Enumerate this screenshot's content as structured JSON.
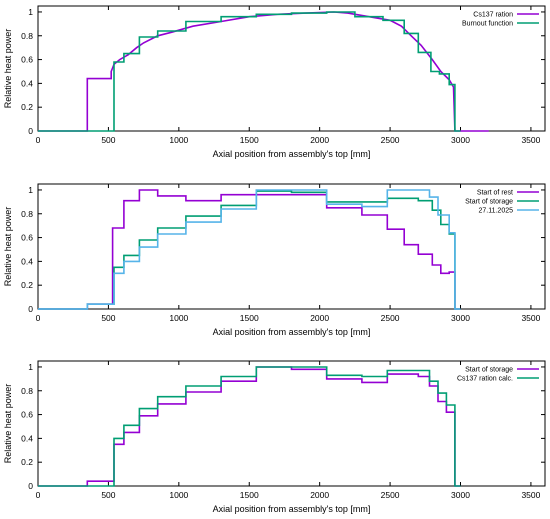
{
  "chart_data": [
    {
      "type": "line",
      "xlabel": "Axial position from assembly's top [mm]",
      "ylabel": "Relative heat power",
      "xlim": [
        0,
        3600
      ],
      "ylim": [
        0,
        1.05
      ],
      "xticks": [
        "0",
        "500",
        "1000",
        "1500",
        "2000",
        "2500",
        "3000",
        "3500"
      ],
      "yticks": [
        "0",
        "0.2",
        "0.4",
        "0.6",
        "0.8",
        "1"
      ],
      "legend_position": "top-right",
      "series": [
        {
          "name": "Cs137 ration",
          "color": "#9400d3",
          "style": "step",
          "points": [
            [
              0,
              0
            ],
            [
              350,
              0
            ],
            [
              350,
              0.44
            ],
            [
              520,
              0.44
            ],
            [
              520,
              0.5
            ],
            [
              540,
              0.56
            ],
            [
              580,
              0.6
            ],
            [
              640,
              0.64
            ],
            [
              700,
              0.7
            ],
            [
              750,
              0.74
            ],
            [
              850,
              0.8
            ],
            [
              950,
              0.83
            ],
            [
              1100,
              0.88
            ],
            [
              1300,
              0.92
            ],
            [
              1500,
              0.96
            ],
            [
              1700,
              0.98
            ],
            [
              1900,
              0.99
            ],
            [
              2100,
              1.0
            ],
            [
              2200,
              0.99
            ],
            [
              2350,
              0.96
            ],
            [
              2500,
              0.93
            ],
            [
              2580,
              0.88
            ],
            [
              2650,
              0.8
            ],
            [
              2720,
              0.72
            ],
            [
              2800,
              0.6
            ],
            [
              2860,
              0.5
            ],
            [
              2920,
              0.43
            ],
            [
              2950,
              0.37
            ],
            [
              2960,
              0
            ],
            [
              3200,
              0
            ]
          ]
        },
        {
          "name": "Burnout function",
          "color": "#009e73",
          "style": "step",
          "points": [
            [
              0,
              0
            ],
            [
              540,
              0
            ],
            [
              540,
              0.58
            ],
            [
              610,
              0.58
            ],
            [
              610,
              0.65
            ],
            [
              720,
              0.65
            ],
            [
              720,
              0.79
            ],
            [
              850,
              0.79
            ],
            [
              850,
              0.84
            ],
            [
              1050,
              0.84
            ],
            [
              1050,
              0.92
            ],
            [
              1300,
              0.92
            ],
            [
              1300,
              0.96
            ],
            [
              1550,
              0.96
            ],
            [
              1550,
              0.98
            ],
            [
              1800,
              0.98
            ],
            [
              1800,
              0.99
            ],
            [
              2050,
              0.99
            ],
            [
              2050,
              1.0
            ],
            [
              2250,
              1.0
            ],
            [
              2250,
              0.96
            ],
            [
              2450,
              0.96
            ],
            [
              2450,
              0.93
            ],
            [
              2600,
              0.93
            ],
            [
              2600,
              0.82
            ],
            [
              2700,
              0.82
            ],
            [
              2700,
              0.66
            ],
            [
              2790,
              0.66
            ],
            [
              2790,
              0.5
            ],
            [
              2850,
              0.5
            ],
            [
              2850,
              0.48
            ],
            [
              2920,
              0.48
            ],
            [
              2920,
              0.39
            ],
            [
              2960,
              0.39
            ],
            [
              2960,
              0
            ],
            [
              3000,
              0
            ]
          ]
        }
      ]
    },
    {
      "type": "line",
      "xlabel": "Axial position from assembly's top [mm]",
      "ylabel": "Relative heat power",
      "xlim": [
        0,
        3600
      ],
      "ylim": [
        0,
        1.05
      ],
      "xticks": [
        "0",
        "500",
        "1000",
        "1500",
        "2000",
        "2500",
        "3000",
        "3500"
      ],
      "yticks": [
        "0",
        "0.2",
        "0.4",
        "0.6",
        "0.8",
        "1"
      ],
      "legend_position": "top-right",
      "series": [
        {
          "name": "Start of rest",
          "color": "#9400d3",
          "style": "step",
          "points": [
            [
              0,
              0
            ],
            [
              350,
              0
            ],
            [
              350,
              0.04
            ],
            [
              530,
              0.04
            ],
            [
              530,
              0.68
            ],
            [
              610,
              0.68
            ],
            [
              610,
              0.91
            ],
            [
              720,
              0.91
            ],
            [
              720,
              1.0
            ],
            [
              850,
              1.0
            ],
            [
              850,
              0.95
            ],
            [
              1050,
              0.95
            ],
            [
              1050,
              0.91
            ],
            [
              1300,
              0.91
            ],
            [
              1300,
              0.96
            ],
            [
              1550,
              0.96
            ],
            [
              1550,
              0.96
            ],
            [
              2050,
              0.96
            ],
            [
              2050,
              0.85
            ],
            [
              2300,
              0.85
            ],
            [
              2300,
              0.79
            ],
            [
              2480,
              0.79
            ],
            [
              2480,
              0.67
            ],
            [
              2600,
              0.67
            ],
            [
              2600,
              0.54
            ],
            [
              2700,
              0.54
            ],
            [
              2700,
              0.46
            ],
            [
              2800,
              0.46
            ],
            [
              2800,
              0.37
            ],
            [
              2860,
              0.37
            ],
            [
              2860,
              0.3
            ],
            [
              2920,
              0.3
            ],
            [
              2920,
              0.31
            ],
            [
              2960,
              0.31
            ],
            [
              2960,
              0
            ],
            [
              3000,
              0
            ]
          ]
        },
        {
          "name": "Start of storage",
          "color": "#009e73",
          "style": "step",
          "points": [
            [
              0,
              0
            ],
            [
              350,
              0
            ],
            [
              350,
              0.04
            ],
            [
              540,
              0.04
            ],
            [
              540,
              0.35
            ],
            [
              610,
              0.35
            ],
            [
              610,
              0.45
            ],
            [
              720,
              0.45
            ],
            [
              720,
              0.58
            ],
            [
              850,
              0.58
            ],
            [
              850,
              0.68
            ],
            [
              1050,
              0.68
            ],
            [
              1050,
              0.78
            ],
            [
              1300,
              0.78
            ],
            [
              1300,
              0.87
            ],
            [
              1550,
              0.87
            ],
            [
              1550,
              0.99
            ],
            [
              1800,
              0.99
            ],
            [
              1800,
              0.98
            ],
            [
              2050,
              0.98
            ],
            [
              2050,
              0.9
            ],
            [
              2300,
              0.9
            ],
            [
              2300,
              0.9
            ],
            [
              2480,
              0.9
            ],
            [
              2480,
              0.93
            ],
            [
              2700,
              0.93
            ],
            [
              2700,
              0.91
            ],
            [
              2800,
              0.91
            ],
            [
              2800,
              0.83
            ],
            [
              2860,
              0.83
            ],
            [
              2860,
              0.71
            ],
            [
              2920,
              0.71
            ],
            [
              2920,
              0.63
            ],
            [
              2960,
              0.63
            ],
            [
              2960,
              0
            ],
            [
              3000,
              0
            ]
          ]
        },
        {
          "name": "27.11.2025",
          "color": "#56b4e9",
          "style": "step",
          "points": [
            [
              0,
              0
            ],
            [
              350,
              0
            ],
            [
              350,
              0.04
            ],
            [
              540,
              0.04
            ],
            [
              540,
              0.3
            ],
            [
              610,
              0.3
            ],
            [
              610,
              0.4
            ],
            [
              720,
              0.4
            ],
            [
              720,
              0.52
            ],
            [
              850,
              0.52
            ],
            [
              850,
              0.63
            ],
            [
              1050,
              0.63
            ],
            [
              1050,
              0.73
            ],
            [
              1300,
              0.73
            ],
            [
              1300,
              0.84
            ],
            [
              1550,
              0.84
            ],
            [
              1550,
              1.0
            ],
            [
              1800,
              1.0
            ],
            [
              1800,
              1.0
            ],
            [
              2050,
              1.0
            ],
            [
              2050,
              0.88
            ],
            [
              2300,
              0.88
            ],
            [
              2300,
              0.86
            ],
            [
              2480,
              0.86
            ],
            [
              2480,
              1.0
            ],
            [
              2780,
              1.0
            ],
            [
              2780,
              0.94
            ],
            [
              2840,
              0.94
            ],
            [
              2840,
              0.79
            ],
            [
              2920,
              0.79
            ],
            [
              2920,
              0.64
            ],
            [
              2960,
              0.64
            ],
            [
              2960,
              0
            ],
            [
              3000,
              0
            ]
          ]
        }
      ]
    },
    {
      "type": "line",
      "xlabel": "Axial position from assembly's top [mm]",
      "ylabel": "Relative heat power",
      "xlim": [
        0,
        3600
      ],
      "ylim": [
        0,
        1.05
      ],
      "xticks": [
        "0",
        "500",
        "1000",
        "1500",
        "2000",
        "2500",
        "3000",
        "3500"
      ],
      "yticks": [
        "0",
        "0.2",
        "0.4",
        "0.6",
        "0.8",
        "1"
      ],
      "legend_position": "top-right",
      "series": [
        {
          "name": "Start of storage",
          "color": "#9400d3",
          "style": "step",
          "points": [
            [
              0,
              0
            ],
            [
              350,
              0
            ],
            [
              350,
              0.04
            ],
            [
              540,
              0.04
            ],
            [
              540,
              0.35
            ],
            [
              610,
              0.35
            ],
            [
              610,
              0.45
            ],
            [
              720,
              0.45
            ],
            [
              720,
              0.59
            ],
            [
              850,
              0.59
            ],
            [
              850,
              0.69
            ],
            [
              1050,
              0.69
            ],
            [
              1050,
              0.79
            ],
            [
              1300,
              0.79
            ],
            [
              1300,
              0.88
            ],
            [
              1550,
              0.88
            ],
            [
              1550,
              1.0
            ],
            [
              1800,
              1.0
            ],
            [
              1800,
              0.98
            ],
            [
              2050,
              0.98
            ],
            [
              2050,
              0.9
            ],
            [
              2300,
              0.9
            ],
            [
              2300,
              0.87
            ],
            [
              2480,
              0.87
            ],
            [
              2480,
              0.94
            ],
            [
              2700,
              0.94
            ],
            [
              2700,
              0.92
            ],
            [
              2780,
              0.92
            ],
            [
              2780,
              0.84
            ],
            [
              2840,
              0.84
            ],
            [
              2840,
              0.71
            ],
            [
              2900,
              0.71
            ],
            [
              2900,
              0.62
            ],
            [
              2960,
              0.62
            ],
            [
              2960,
              0
            ],
            [
              3000,
              0
            ]
          ]
        },
        {
          "name": "Cs137 ration calc.",
          "color": "#009e73",
          "style": "step",
          "points": [
            [
              0,
              0
            ],
            [
              540,
              0
            ],
            [
              540,
              0.4
            ],
            [
              610,
              0.4
            ],
            [
              610,
              0.51
            ],
            [
              720,
              0.51
            ],
            [
              720,
              0.65
            ],
            [
              850,
              0.65
            ],
            [
              850,
              0.75
            ],
            [
              1050,
              0.75
            ],
            [
              1050,
              0.84
            ],
            [
              1300,
              0.84
            ],
            [
              1300,
              0.92
            ],
            [
              1550,
              0.92
            ],
            [
              1550,
              1.0
            ],
            [
              1800,
              1.0
            ],
            [
              1800,
              1.0
            ],
            [
              2050,
              1.0
            ],
            [
              2050,
              0.93
            ],
            [
              2300,
              0.93
            ],
            [
              2300,
              0.92
            ],
            [
              2480,
              0.92
            ],
            [
              2480,
              0.97
            ],
            [
              2700,
              0.97
            ],
            [
              2700,
              0.97
            ],
            [
              2780,
              0.97
            ],
            [
              2780,
              0.88
            ],
            [
              2840,
              0.88
            ],
            [
              2840,
              0.78
            ],
            [
              2900,
              0.78
            ],
            [
              2900,
              0.68
            ],
            [
              2960,
              0.68
            ],
            [
              2960,
              0
            ],
            [
              3000,
              0
            ]
          ]
        }
      ]
    }
  ]
}
